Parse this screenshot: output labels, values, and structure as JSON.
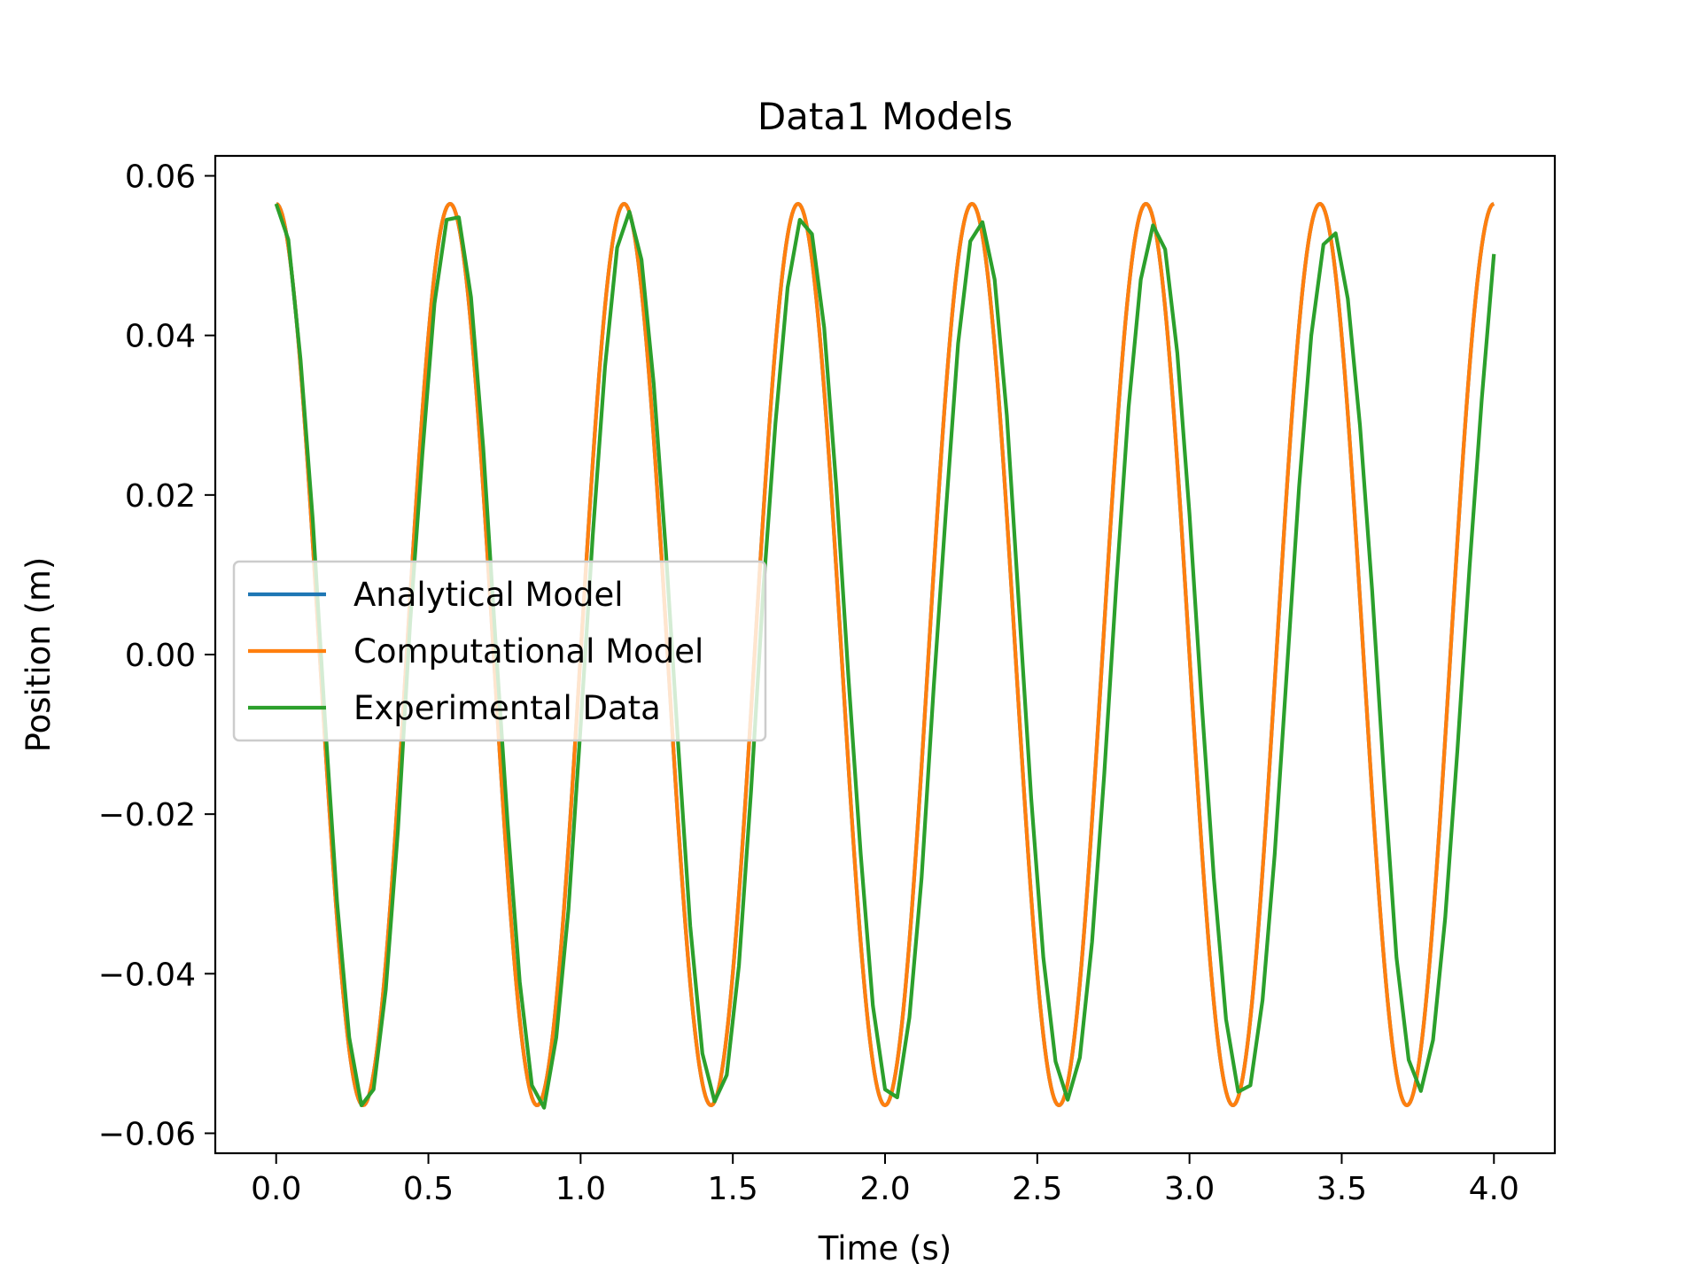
{
  "chart_data": {
    "type": "line",
    "title": "Data1 Models",
    "xlabel": "Time (s)",
    "ylabel": "Position (m)",
    "xlim": [
      -0.2,
      4.2
    ],
    "ylim": [
      -0.0625,
      0.0625
    ],
    "xticks": [
      0.0,
      0.5,
      1.0,
      1.5,
      2.0,
      2.5,
      3.0,
      3.5,
      4.0
    ],
    "xtick_labels": [
      "0.0",
      "0.5",
      "1.0",
      "1.5",
      "2.0",
      "2.5",
      "3.0",
      "3.5",
      "4.0"
    ],
    "yticks": [
      0.06,
      0.04,
      0.02,
      0.0,
      -0.02,
      -0.04,
      -0.06
    ],
    "ytick_labels": [
      "0.06",
      "0.04",
      "0.02",
      "0.00",
      "−0.02",
      "−0.04",
      "−0.06"
    ],
    "grid": false,
    "legend_position": "center-left",
    "series": [
      {
        "name": "Analytical Model",
        "color": "#1f77b4",
        "model": "cosine",
        "amplitude": 0.0565,
        "period": 0.5714,
        "x_range": [
          0.0,
          4.0
        ]
      },
      {
        "name": "Computational Model",
        "color": "#ff7f0e",
        "model": "cosine",
        "amplitude": 0.0565,
        "period": 0.5714,
        "x_range": [
          0.0,
          4.0
        ]
      },
      {
        "name": "Experimental Data",
        "color": "#2ca02c",
        "x": [
          0.0,
          0.04,
          0.08,
          0.12,
          0.16,
          0.2,
          0.24,
          0.28,
          0.32,
          0.36,
          0.4,
          0.44,
          0.48,
          0.52,
          0.56,
          0.6,
          0.64,
          0.68,
          0.72,
          0.76,
          0.8,
          0.84,
          0.88,
          0.92,
          0.96,
          1.0,
          1.04,
          1.08,
          1.12,
          1.16,
          1.2,
          1.24,
          1.28,
          1.32,
          1.36,
          1.4,
          1.44,
          1.48,
          1.52,
          1.56,
          1.6,
          1.64,
          1.68,
          1.72,
          1.76,
          1.8,
          1.84,
          1.88,
          1.92,
          1.96,
          2.0,
          2.04,
          2.08,
          2.12,
          2.16,
          2.2,
          2.24,
          2.28,
          2.32,
          2.36,
          2.4,
          2.44,
          2.48,
          2.52,
          2.56,
          2.6,
          2.64,
          2.68,
          2.72,
          2.76,
          2.8,
          2.84,
          2.88,
          2.92,
          2.96,
          3.0,
          3.04,
          3.08,
          3.12,
          3.16,
          3.2,
          3.24,
          3.28,
          3.32,
          3.36,
          3.4,
          3.44,
          3.48,
          3.52,
          3.56,
          3.6,
          3.64,
          3.68,
          3.72,
          3.76,
          3.8,
          3.84,
          3.88,
          3.92,
          3.96,
          4.0
        ],
        "y": [
          0.0565,
          0.052,
          0.037,
          0.017,
          -0.008,
          -0.031,
          -0.048,
          -0.0565,
          -0.0545,
          -0.042,
          -0.022,
          0.004,
          0.025,
          0.044,
          0.0545,
          0.0548,
          0.0448,
          0.026,
          0.002,
          -0.021,
          -0.041,
          -0.054,
          -0.0568,
          -0.048,
          -0.032,
          -0.009,
          0.015,
          0.036,
          0.051,
          0.0555,
          0.0495,
          0.034,
          0.013,
          -0.011,
          -0.034,
          -0.05,
          -0.056,
          -0.0527,
          -0.039,
          -0.017,
          0.008,
          0.029,
          0.046,
          0.0545,
          0.0527,
          0.041,
          0.021,
          -0.003,
          -0.025,
          -0.044,
          -0.0545,
          -0.0555,
          -0.0455,
          -0.028,
          -0.004,
          0.018,
          0.039,
          0.0518,
          0.0542,
          0.047,
          0.03,
          0.006,
          -0.018,
          -0.038,
          -0.051,
          -0.0558,
          -0.0505,
          -0.036,
          -0.015,
          0.009,
          0.031,
          0.047,
          0.0538,
          0.0508,
          0.0378,
          0.0176,
          -0.006,
          -0.028,
          -0.0457,
          -0.0548,
          -0.054,
          -0.0433,
          -0.025,
          -0.002,
          0.021,
          0.04,
          0.0514,
          0.0528,
          0.0446,
          0.0287,
          0.008,
          -0.016,
          -0.038,
          -0.0508,
          -0.0547,
          -0.0483,
          -0.033,
          -0.012,
          0.011,
          0.032,
          0.0502
        ]
      }
    ]
  }
}
